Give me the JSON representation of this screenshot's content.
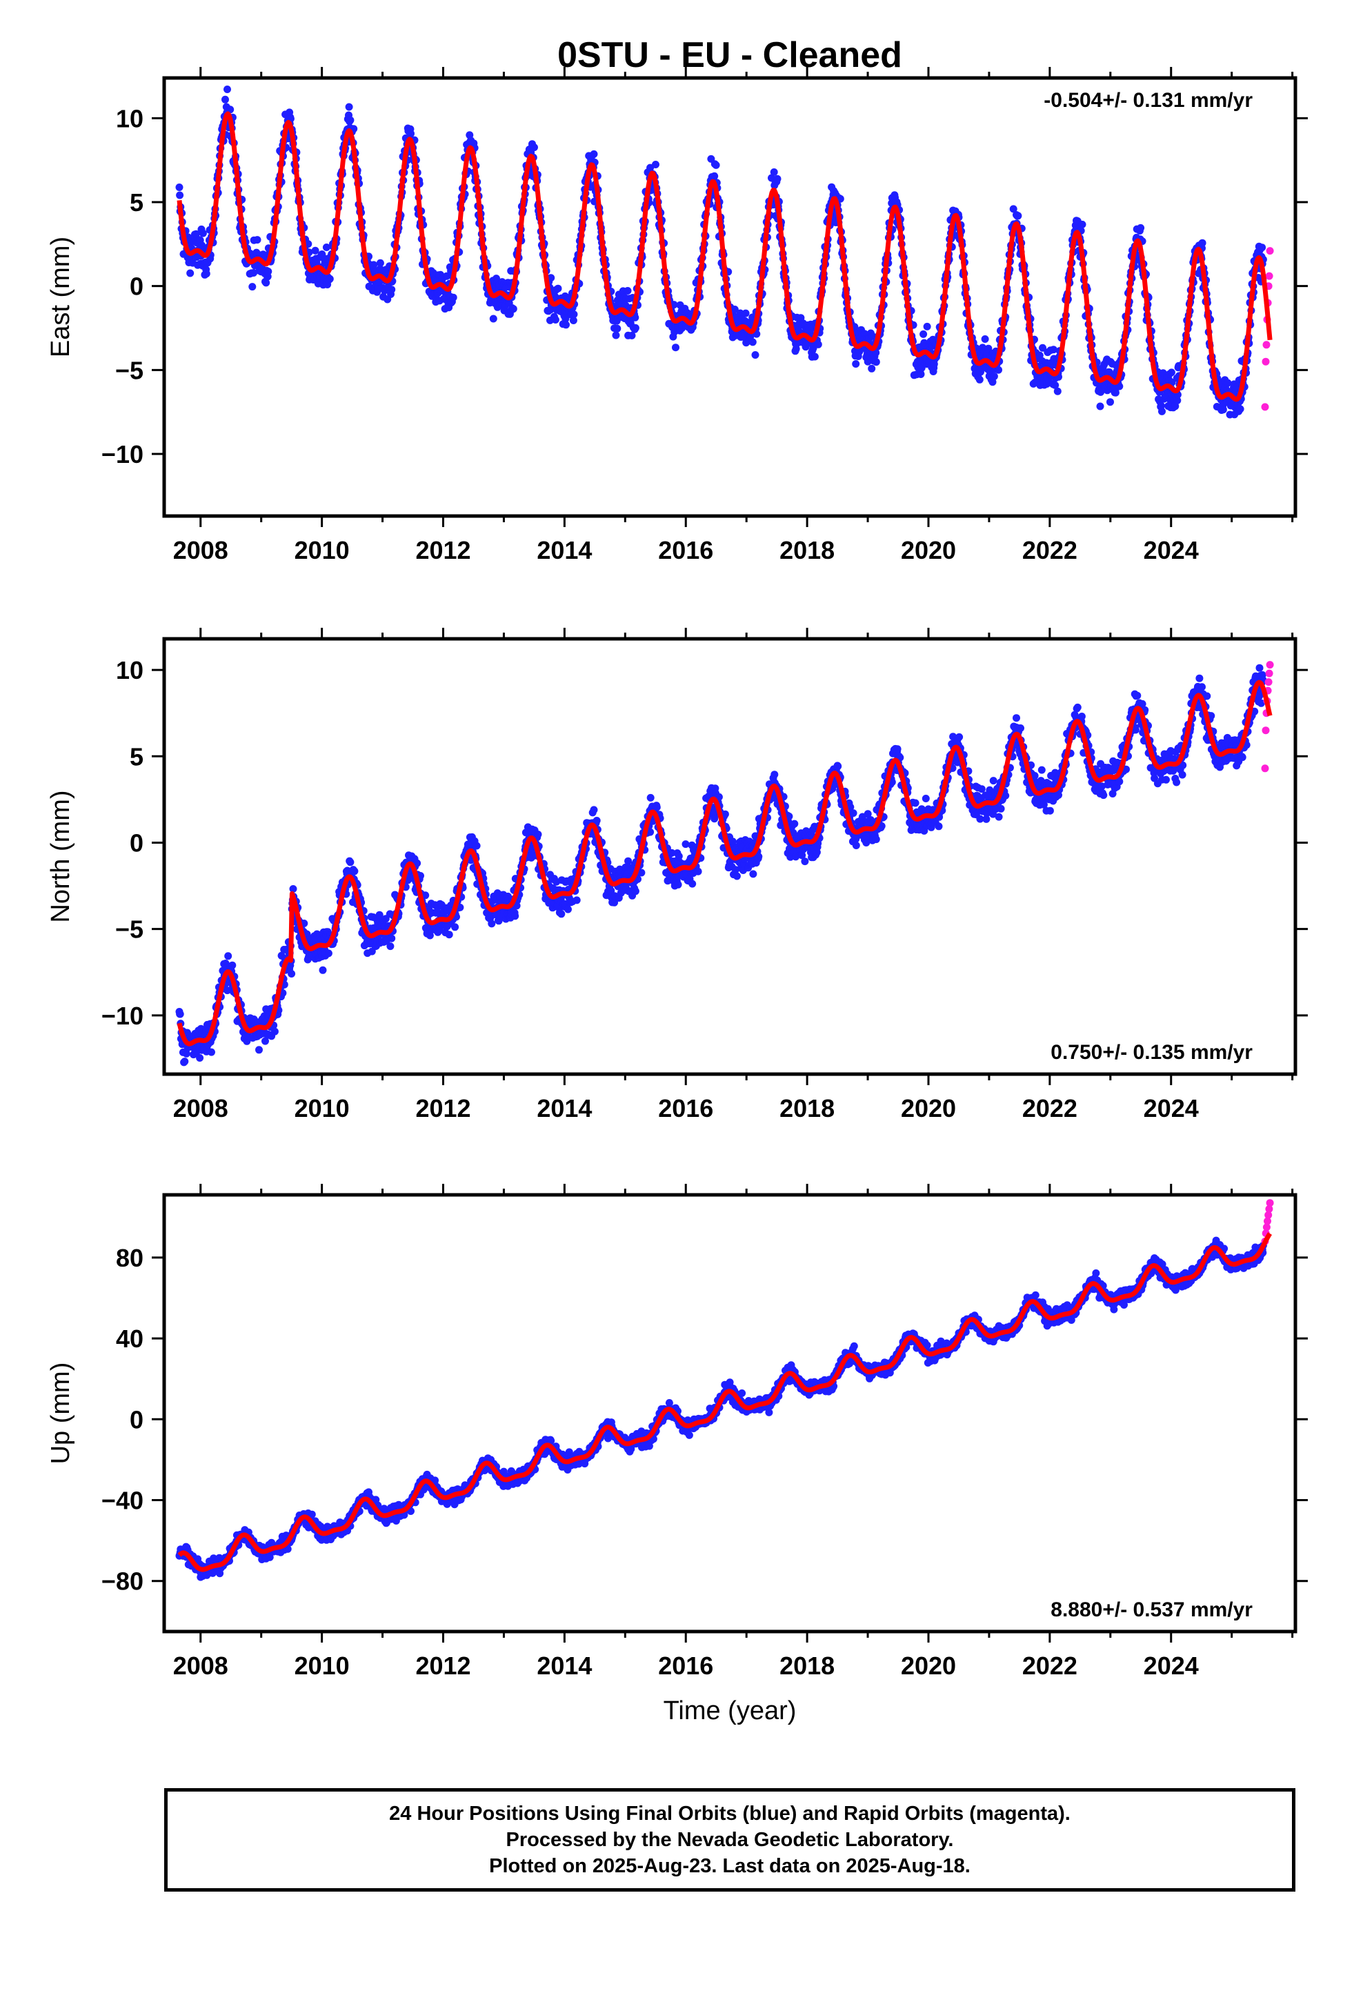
{
  "title": "0STU  - EU - Cleaned",
  "colors": {
    "final": "#1f1fff",
    "rapid": "#ff1fd6",
    "model": "#ff0000",
    "frame": "#000000"
  },
  "chart_data": [
    {
      "type": "scatter",
      "ylabel": "East (mm)",
      "xlabel": "",
      "xlim": [
        2007.4,
        2026.05
      ],
      "ylim": [
        -13.7,
        12.4
      ],
      "xticks": [
        2008,
        2010,
        2012,
        2014,
        2016,
        2018,
        2020,
        2022,
        2024
      ],
      "yticks": [
        -10,
        -5,
        0,
        5,
        10
      ],
      "rate_text": "-0.504+/- 0.131 mm/yr",
      "rate_position": "top-right",
      "series": [
        {
          "kind": "final orbits",
          "x_range": [
            2007.65,
            2025.52
          ],
          "trend_start": 5.0,
          "rate": -0.504,
          "annual_amp": 4.2,
          "annual_peak_phase": 0.45,
          "scatter_sd": 1.5
        },
        {
          "kind": "rapid orbits",
          "x_range": [
            2025.55,
            2025.63
          ],
          "y_values": [
            -7.2,
            -4.5,
            -3.5,
            -2.0,
            -1.0,
            0.0,
            0.6,
            2.1
          ]
        },
        {
          "kind": "model",
          "x_range": [
            2007.65,
            2025.63
          ]
        }
      ]
    },
    {
      "type": "scatter",
      "ylabel": "North (mm)",
      "xlabel": "",
      "xlim": [
        2007.4,
        2026.05
      ],
      "ylim": [
        -13.4,
        11.8
      ],
      "xticks": [
        2008,
        2010,
        2012,
        2014,
        2016,
        2018,
        2020,
        2022,
        2024
      ],
      "yticks": [
        -10,
        -5,
        0,
        5,
        10
      ],
      "rate_text": "0.750+/- 0.135 mm/yr",
      "rate_position": "bottom-right",
      "offsets": [
        {
          "before": 2009.5,
          "shift": 4.0
        }
      ],
      "series": [
        {
          "kind": "final orbits",
          "x_range": [
            2007.65,
            2025.52
          ],
          "trend_start": -6.5,
          "rate": 0.75,
          "annual_amp": 1.8,
          "annual_peak_phase": 0.45,
          "scatter_sd": 1.3
        },
        {
          "kind": "rapid orbits",
          "x_range": [
            2025.55,
            2025.63
          ],
          "y_values": [
            4.3,
            6.5,
            7.5,
            8.2,
            8.8,
            9.3,
            9.8,
            10.3
          ]
        },
        {
          "kind": "model",
          "x_range": [
            2007.65,
            2025.63
          ]
        }
      ]
    },
    {
      "type": "scatter",
      "ylabel": "Up (mm)",
      "xlabel": "Time (year)",
      "xlim": [
        2007.4,
        2026.05
      ],
      "ylim": [
        -105,
        111
      ],
      "xticks": [
        2008,
        2010,
        2012,
        2014,
        2016,
        2018,
        2020,
        2022,
        2024
      ],
      "yticks": [
        -80,
        -40,
        0,
        40,
        80
      ],
      "rate_text": "8.880+/- 0.537 mm/yr",
      "rate_position": "bottom-right",
      "series": [
        {
          "kind": "final orbits",
          "x_range": [
            2007.65,
            2025.52
          ],
          "trend_start": -74,
          "rate": 8.88,
          "annual_amp": 5.5,
          "annual_peak_phase": 0.7,
          "scatter_sd": 4.5
        },
        {
          "kind": "rapid orbits",
          "x_range": [
            2025.55,
            2025.63
          ],
          "y_values": [
            88,
            92,
            95,
            98,
            101,
            104,
            107
          ]
        },
        {
          "kind": "model",
          "x_range": [
            2007.65,
            2025.63
          ]
        }
      ]
    }
  ],
  "footer": {
    "line1": "24 Hour Positions Using Final Orbits (blue) and Rapid Orbits (magenta).",
    "line2": "Processed by the Nevada Geodetic Laboratory.",
    "line3": "Plotted on 2025-Aug-23. Last data on 2025-Aug-18."
  }
}
